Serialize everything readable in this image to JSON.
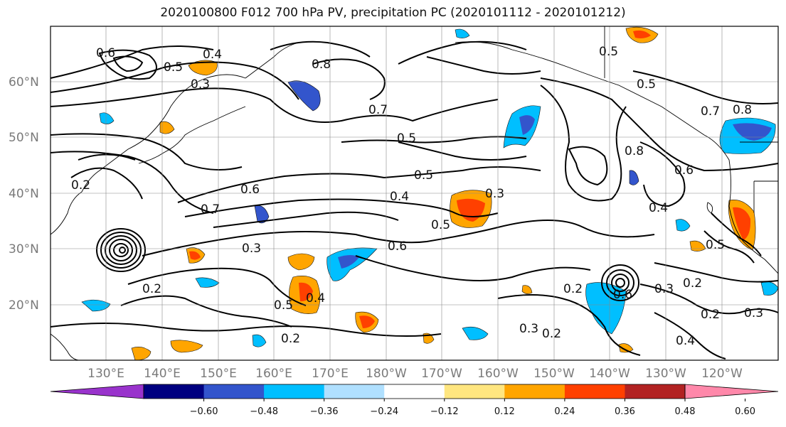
{
  "title": "2020100800 F012 700 hPa PV, precipitation PC (2020101112 - 2020101212)",
  "map": {
    "lat_labels": [
      "60°N",
      "50°N",
      "40°N",
      "30°N",
      "20°N"
    ],
    "lon_labels": [
      "130°E",
      "140°E",
      "150°E",
      "160°E",
      "170°E",
      "180°W",
      "170°W",
      "160°W",
      "150°W",
      "140°W",
      "130°W",
      "120°W"
    ],
    "contour_labels": [
      "0.6",
      "0.4",
      "0.5",
      "0.3",
      "0.8",
      "0.7",
      "0.5",
      "0.5",
      "0.5",
      "0.4",
      "0.6",
      "0.7",
      "0.3",
      "0.5",
      "0.6",
      "0.3",
      "0.5",
      "0.4",
      "0.2",
      "0.2",
      "0.2",
      "0.3",
      "0.2",
      "0.6",
      "0.8",
      "0.4",
      "0.5",
      "0.8",
      "0.7",
      "0.6",
      "0.5",
      "0.3",
      "0.2",
      "0.3",
      "0.2",
      "0.4",
      "0.2"
    ]
  },
  "colorbar": {
    "colors": [
      "#9933cc",
      "#000080",
      "#3355cc",
      "#00bfff",
      "#b0e0ff",
      "#ffffff",
      "#ffe680",
      "#ffa500",
      "#ff4000",
      "#b22222",
      "#ff88aa"
    ],
    "tick_labels": [
      "−0.60",
      "−0.48",
      "−0.36",
      "−0.24",
      "−0.12",
      "0.12",
      "0.24",
      "0.36",
      "0.48",
      "0.60"
    ]
  }
}
